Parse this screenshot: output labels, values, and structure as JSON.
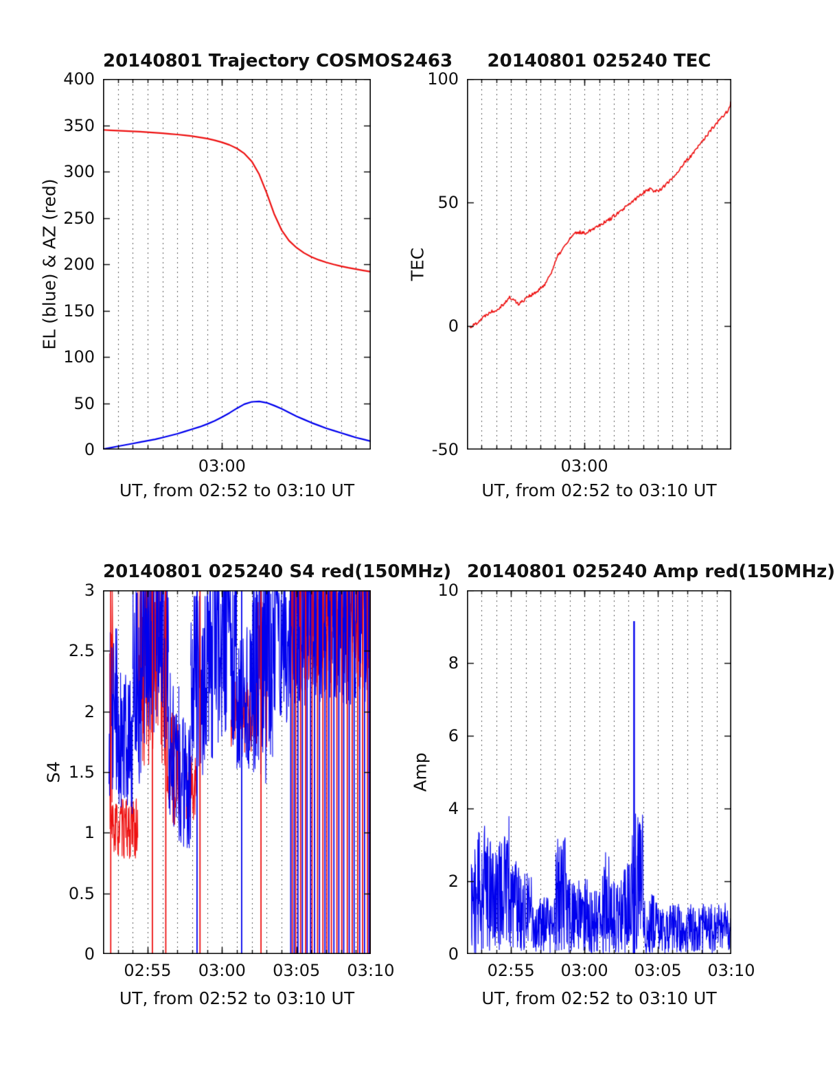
{
  "colors": {
    "red": "#ee1111",
    "blue": "#0000ee",
    "axis": "#000000",
    "grid": "#2b2b2b",
    "background": "#ffffff"
  },
  "chart_data": [
    {
      "id": "trajectory",
      "type": "line",
      "seed": 11,
      "title": "20140801 Trajectory COSMOS2463",
      "xlabel": "UT, from 02:52 to 03:10 UT",
      "ylabel": "EL (blue) & AZ (red)",
      "x_unit": "minutes after 02:52 UT",
      "xlim": [
        0,
        18
      ],
      "ylim": [
        0,
        400
      ],
      "minor_x_step": 1,
      "yticks": [
        {
          "v": 0,
          "label": "0"
        },
        {
          "v": 50,
          "label": "50"
        },
        {
          "v": 100,
          "label": "100"
        },
        {
          "v": 150,
          "label": "150"
        },
        {
          "v": 200,
          "label": "200"
        },
        {
          "v": 250,
          "label": "250"
        },
        {
          "v": 300,
          "label": "300"
        },
        {
          "v": 350,
          "label": "350"
        },
        {
          "v": 400,
          "label": "400"
        }
      ],
      "xticks": [
        {
          "v": 8,
          "label": "03:00"
        }
      ],
      "series": [
        {
          "name": "AZ",
          "kind": "line",
          "color_key": "red",
          "width": 2.2,
          "x": [
            0,
            0.5,
            1,
            1.5,
            2,
            2.5,
            3,
            3.5,
            4,
            4.5,
            5,
            5.5,
            6,
            6.5,
            7,
            7.5,
            8,
            8.5,
            9,
            9.5,
            10,
            10.5,
            11,
            11.5,
            12,
            12.5,
            13,
            13.5,
            14,
            14.5,
            15,
            15.5,
            16,
            16.5,
            17,
            17.5,
            18
          ],
          "y": [
            345,
            344.6,
            344.2,
            343.8,
            343.4,
            343,
            342.5,
            342,
            341.4,
            340.7,
            340,
            339.2,
            338.2,
            337,
            335.6,
            333.8,
            331.6,
            328.8,
            325,
            319.5,
            311,
            297,
            277,
            254.5,
            237,
            225.5,
            218,
            212.3,
            208,
            204.7,
            202,
            199.8,
            197.9,
            196.2,
            194.7,
            193.3,
            192
          ]
        },
        {
          "name": "EL",
          "kind": "line",
          "color_key": "blue",
          "width": 2.2,
          "x": [
            0,
            0.5,
            1,
            1.5,
            2,
            2.5,
            3,
            3.5,
            4,
            4.5,
            5,
            5.5,
            6,
            6.5,
            7,
            7.5,
            8,
            8.5,
            9,
            9.5,
            10,
            10.5,
            11,
            11.5,
            12,
            12.5,
            13,
            13.5,
            14,
            14.5,
            15,
            15.5,
            16,
            16.5,
            17,
            17.5,
            18
          ],
          "y": [
            0.5,
            2,
            3.5,
            5,
            6.5,
            8,
            9.5,
            11,
            13,
            15,
            17,
            19.5,
            22,
            24.5,
            27.5,
            31,
            35,
            39.5,
            44.5,
            49,
            51.5,
            52,
            50.5,
            47.5,
            44,
            40,
            36,
            32.5,
            29,
            26,
            23,
            20.5,
            18,
            15.5,
            13,
            11,
            9
          ]
        }
      ]
    },
    {
      "id": "tec",
      "type": "line",
      "seed": 22,
      "title": "20140801 025240 TEC",
      "xlabel": "UT, from 02:52 to 03:10 UT",
      "ylabel": "TEC",
      "x_unit": "minutes after 02:52 UT",
      "xlim": [
        0,
        18
      ],
      "ylim": [
        -50,
        100
      ],
      "minor_x_step": 1,
      "yticks": [
        {
          "v": -50,
          "label": "-50"
        },
        {
          "v": 0,
          "label": "0"
        },
        {
          "v": 50,
          "label": "50"
        },
        {
          "v": 100,
          "label": "100"
        }
      ],
      "xticks": [
        {
          "v": 8,
          "label": "03:00"
        }
      ],
      "series": [
        {
          "name": "TEC",
          "kind": "noisy-line",
          "color_key": "red",
          "width": 1.6,
          "upsample": 6,
          "jitter": 0.7,
          "x": [
            0.2,
            0.5,
            0.8,
            1.1,
            1.4,
            1.7,
            2,
            2.3,
            2.6,
            2.9,
            3.2,
            3.5,
            3.8,
            4.1,
            4.4,
            4.7,
            5,
            5.3,
            5.6,
            5.9,
            6.2,
            6.5,
            6.8,
            7.1,
            7.4,
            7.7,
            8,
            8.3,
            8.6,
            8.9,
            9.2,
            9.5,
            9.8,
            10.1,
            10.4,
            10.7,
            11,
            11.3,
            11.6,
            11.9,
            12.2,
            12.5,
            12.8,
            13.1,
            13.4,
            13.7,
            14,
            14.3,
            14.6,
            14.9,
            15.2,
            15.5,
            15.8,
            16.1,
            16.4,
            16.7,
            17,
            17.3,
            17.6,
            17.9,
            18
          ],
          "y": [
            -0.5,
            0.5,
            2,
            3.5,
            5,
            6,
            6.5,
            8,
            9.5,
            11.5,
            10.5,
            9,
            10,
            12,
            12.5,
            13.5,
            15,
            17,
            20,
            24,
            28.5,
            31,
            33.5,
            36,
            37.5,
            38,
            37.5,
            38.5,
            39.5,
            40.5,
            41.5,
            42.5,
            43.5,
            45,
            46,
            47.5,
            49,
            50.5,
            52,
            53.5,
            55,
            55.5,
            54.5,
            55,
            56.5,
            58,
            60,
            62,
            64.5,
            66.5,
            68.5,
            70.5,
            73,
            75.5,
            77.5,
            80,
            82,
            84,
            86,
            88.5,
            91.5
          ]
        }
      ]
    },
    {
      "id": "s4",
      "type": "line",
      "seed": 33,
      "title": "20140801 025240 S4 red(150MHz)",
      "xlabel": "UT, from 02:52 to 03:10 UT",
      "ylabel": "S4",
      "x_unit": "minutes after 02:52 UT",
      "xlim": [
        0,
        18
      ],
      "ylim": [
        0,
        3
      ],
      "minor_x_step": 1,
      "yticks": [
        {
          "v": 0,
          "label": "0"
        },
        {
          "v": 0.5,
          "label": "0.5"
        },
        {
          "v": 1,
          "label": "1"
        },
        {
          "v": 1.5,
          "label": "1.5"
        },
        {
          "v": 2,
          "label": "2"
        },
        {
          "v": 2.5,
          "label": "2.5"
        },
        {
          "v": 3,
          "label": "3"
        }
      ],
      "xticks": [
        {
          "v": 3,
          "label": "02:55"
        },
        {
          "v": 8,
          "label": "03:00"
        },
        {
          "v": 13,
          "label": "03:05"
        },
        {
          "v": 18,
          "label": "03:10"
        }
      ],
      "series": [
        {
          "name": "S4 150MHz red",
          "kind": "noise-band",
          "color_key": "red",
          "width": 1.1,
          "step": 0.02,
          "segments": [
            [
              0.45,
              0.7,
              1.0,
              3.0,
              0.2
            ],
            [
              0.5,
              2.35,
              0.78,
              1.28,
              0
            ],
            [
              2.35,
              4.3,
              1.55,
              3.0,
              0.3
            ],
            [
              4.3,
              5.2,
              1.05,
              2.0,
              0
            ],
            [
              5.6,
              6.3,
              1.1,
              1.65,
              0
            ],
            [
              8.6,
              10.3,
              1.65,
              2.25,
              0
            ],
            [
              10.3,
              11.1,
              1.7,
              2.9,
              0.1
            ],
            [
              12.6,
              18,
              2.2,
              3.0,
              0.35
            ]
          ]
        },
        {
          "name": "S4 blue",
          "kind": "noise-band",
          "color_key": "blue",
          "width": 1.1,
          "step": 0.02,
          "segments": [
            [
              0.4,
              1.0,
              1.3,
              2.7,
              0
            ],
            [
              1.0,
              2.0,
              1.15,
              2.35,
              0
            ],
            [
              2.0,
              2.6,
              1.4,
              3,
              0.25
            ],
            [
              2.6,
              3.6,
              1.7,
              3,
              0.35
            ],
            [
              3.6,
              4.4,
              1.6,
              3,
              0.3
            ],
            [
              4.4,
              5.1,
              1.05,
              2.4,
              0
            ],
            [
              5.1,
              5.9,
              0.85,
              1.95,
              0
            ],
            [
              5.9,
              7.0,
              1.4,
              2.95,
              0.1
            ],
            [
              7.0,
              9.0,
              1.6,
              3,
              0.35
            ],
            [
              9.0,
              10.0,
              1.5,
              2.7,
              0.05
            ],
            [
              10.0,
              11.4,
              1.4,
              3,
              0.25
            ],
            [
              11.4,
              12.6,
              1.9,
              3,
              0.35
            ],
            [
              12.6,
              18,
              2.05,
              3,
              0.4
            ]
          ]
        },
        {
          "name": "red full-range lines",
          "kind": "spikes",
          "color_key": "red",
          "width": 1.8,
          "base": 0,
          "points": [
            [
              0.52,
              3
            ],
            [
              3.32,
              3
            ],
            [
              4.22,
              3
            ],
            [
              6.52,
              3
            ],
            [
              10.62,
              3
            ],
            [
              12.72,
              3
            ],
            [
              12.95,
              3
            ],
            [
              13.28,
              3
            ],
            [
              13.62,
              3
            ],
            [
              14.05,
              3
            ],
            [
              14.42,
              3
            ],
            [
              14.78,
              3
            ],
            [
              15.05,
              3
            ],
            [
              15.35,
              3
            ],
            [
              15.72,
              3
            ],
            [
              16.05,
              3
            ],
            [
              16.42,
              3
            ],
            [
              16.75,
              3
            ],
            [
              17.12,
              3
            ],
            [
              17.45,
              3
            ],
            [
              17.78,
              3
            ],
            [
              17.95,
              3
            ]
          ]
        },
        {
          "name": "blue full-range lines",
          "kind": "spikes",
          "color_key": "blue",
          "width": 1.8,
          "base": 0,
          "points": [
            [
              6.32,
              3
            ],
            [
              9.32,
              3
            ],
            [
              12.62,
              3
            ],
            [
              12.85,
              3
            ],
            [
              13.1,
              3
            ],
            [
              13.4,
              3
            ],
            [
              13.72,
              3
            ],
            [
              13.95,
              3
            ],
            [
              14.22,
              3
            ],
            [
              14.55,
              3
            ],
            [
              14.92,
              3
            ],
            [
              15.18,
              3
            ],
            [
              15.52,
              3
            ],
            [
              15.85,
              3
            ],
            [
              16.18,
              3
            ],
            [
              16.55,
              3
            ],
            [
              16.88,
              3
            ],
            [
              17.25,
              3
            ],
            [
              17.58,
              3
            ],
            [
              17.88,
              3
            ]
          ]
        }
      ]
    },
    {
      "id": "amp",
      "type": "line",
      "seed": 44,
      "title": "20140801 025240 Amp red(150MHz)",
      "xlabel": "UT, from 02:52 to 03:10 UT",
      "ylabel": "Amp",
      "x_unit": "minutes after 02:52 UT",
      "xlim": [
        0,
        18
      ],
      "ylim": [
        0,
        10
      ],
      "minor_x_step": 1,
      "yticks": [
        {
          "v": 0,
          "label": "0"
        },
        {
          "v": 2,
          "label": "2"
        },
        {
          "v": 4,
          "label": "4"
        },
        {
          "v": 6,
          "label": "6"
        },
        {
          "v": 8,
          "label": "8"
        },
        {
          "v": 10,
          "label": "10"
        }
      ],
      "xticks": [
        {
          "v": 3,
          "label": "02:55"
        },
        {
          "v": 8,
          "label": "03:00"
        },
        {
          "v": 13,
          "label": "03:05"
        },
        {
          "v": 18,
          "label": "03:10"
        }
      ],
      "series": [
        {
          "name": "Amp 150MHz",
          "kind": "noise-band",
          "color_key": "blue",
          "width": 1.1,
          "step": 0.02,
          "segments": [
            [
              0.3,
              0.7,
              0,
              2.95,
              0
            ],
            [
              0.7,
              1.1,
              0,
              3.35,
              0
            ],
            [
              1.1,
              1.5,
              0,
              3.75,
              0
            ],
            [
              1.5,
              2.2,
              0,
              3.15,
              0
            ],
            [
              2.2,
              2.9,
              0,
              3.8,
              0
            ],
            [
              2.9,
              3.6,
              0,
              2.95,
              0
            ],
            [
              3.6,
              4.4,
              0,
              2.25,
              0
            ],
            [
              4.4,
              6.0,
              0,
              1.55,
              0
            ],
            [
              6.0,
              6.8,
              0,
              3.25,
              0
            ],
            [
              6.8,
              8.2,
              0,
              2.1,
              0
            ],
            [
              8.2,
              9.2,
              0,
              1.75,
              0
            ],
            [
              9.2,
              9.7,
              0,
              2.95,
              0
            ],
            [
              9.7,
              10.6,
              0,
              2.05,
              0
            ],
            [
              10.6,
              11.2,
              0,
              2.55,
              0
            ],
            [
              11.2,
              12.0,
              0,
              3.95,
              0
            ],
            [
              12.0,
              13.0,
              0,
              1.65,
              0
            ],
            [
              13.0,
              18.0,
              0,
              1.4,
              0
            ]
          ]
        },
        {
          "name": "Amp peak",
          "kind": "spikes",
          "color_key": "blue",
          "width": 2.4,
          "base": 0,
          "points": [
            [
              11.38,
              9.15
            ]
          ]
        }
      ]
    }
  ]
}
